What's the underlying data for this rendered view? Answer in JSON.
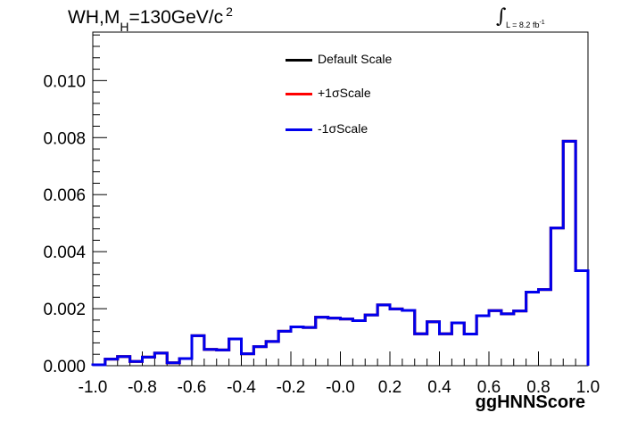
{
  "title": {
    "prefix": "WH,M",
    "subscript": "H",
    "value": "=130GeV/c",
    "superscript": "2"
  },
  "luminosity": {
    "integral": "∫",
    "text": "L = 8.2 fb",
    "exponent": "-1"
  },
  "colors": {
    "default": "#000000",
    "plus": "#ff0000",
    "minus": "#0000ee"
  },
  "chart_data": {
    "type": "line",
    "style": "step-histogram",
    "title": "",
    "xlabel": "ggHNNScore",
    "ylabel": "",
    "xlim": [
      -1.0,
      1.0
    ],
    "ylim": [
      0.0,
      0.0117
    ],
    "x_ticks": [
      "-1.0",
      "-0.8",
      "-0.6",
      "-0.4",
      "-0.2",
      "-0.0",
      "0.2",
      "0.4",
      "0.6",
      "0.8",
      "1.0"
    ],
    "y_ticks": [
      "0.000",
      "0.002",
      "0.004",
      "0.006",
      "0.008",
      "0.010"
    ],
    "bin_edges": [
      -1.0,
      -0.95,
      -0.9,
      -0.85,
      -0.8,
      -0.75,
      -0.7,
      -0.65,
      -0.6,
      -0.55,
      -0.5,
      -0.45,
      -0.4,
      -0.35,
      -0.3,
      -0.25,
      -0.2,
      -0.15,
      -0.1,
      -0.05,
      0.0,
      0.05,
      0.1,
      0.15,
      0.2,
      0.25,
      0.3,
      0.35,
      0.4,
      0.45,
      0.5,
      0.55,
      0.6,
      0.65,
      0.7,
      0.75,
      0.8,
      0.85,
      0.9,
      0.95,
      1.0
    ],
    "series": [
      {
        "name": "Default Scale",
        "color": "#000000",
        "values": [
          3e-05,
          0.00023,
          0.00032,
          0.00015,
          0.0003,
          0.00044,
          0.0001,
          0.00025,
          0.00105,
          0.00057,
          0.00055,
          0.00094,
          0.00042,
          0.00067,
          0.00085,
          0.00121,
          0.00136,
          0.00134,
          0.0017,
          0.00167,
          0.00164,
          0.00158,
          0.00178,
          0.00213,
          0.00199,
          0.00194,
          0.00112,
          0.00154,
          0.00112,
          0.0015,
          0.00111,
          0.00175,
          0.00193,
          0.00182,
          0.00192,
          0.00258,
          0.00267,
          0.00483,
          0.00787,
          0.00333
        ]
      },
      {
        "name": "+1σScale",
        "color": "#ff0000",
        "values": [
          3e-05,
          0.00023,
          0.00032,
          0.00015,
          0.0003,
          0.00044,
          0.0001,
          0.00025,
          0.00105,
          0.00057,
          0.00055,
          0.00094,
          0.00042,
          0.00067,
          0.00085,
          0.00121,
          0.00136,
          0.00134,
          0.0017,
          0.00167,
          0.00164,
          0.00158,
          0.00178,
          0.00213,
          0.00199,
          0.00194,
          0.00112,
          0.00154,
          0.00112,
          0.0015,
          0.00111,
          0.00175,
          0.00193,
          0.00182,
          0.00192,
          0.00258,
          0.00267,
          0.00483,
          0.00787,
          0.00333
        ]
      },
      {
        "name": "-1σScale",
        "color": "#0000ee",
        "values": [
          3e-05,
          0.00023,
          0.00032,
          0.00015,
          0.0003,
          0.00044,
          0.0001,
          0.00025,
          0.00105,
          0.00057,
          0.00055,
          0.00094,
          0.00042,
          0.00067,
          0.00085,
          0.00121,
          0.00136,
          0.00134,
          0.0017,
          0.00167,
          0.00164,
          0.00158,
          0.00178,
          0.00213,
          0.00199,
          0.00194,
          0.00112,
          0.00154,
          0.00112,
          0.0015,
          0.00111,
          0.00175,
          0.00193,
          0.00182,
          0.00192,
          0.00258,
          0.00267,
          0.00483,
          0.00787,
          0.00333
        ]
      }
    ],
    "legend": {
      "placement": "top-center",
      "entries": [
        "Default Scale",
        "+1σScale",
        "-1σScale"
      ]
    },
    "grid": false
  }
}
